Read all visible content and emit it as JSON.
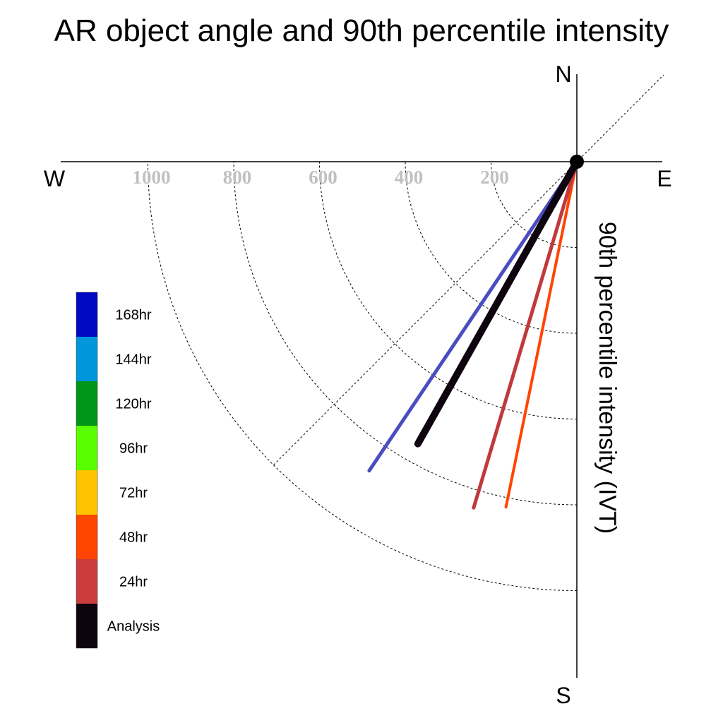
{
  "title": "AR object angle and 90th percentile intensity",
  "compass": {
    "n": "N",
    "e": "E",
    "s": "S",
    "w": "W"
  },
  "ylabel": "90th percentile intensity (IVT)",
  "chart_data": {
    "type": "polar-vector",
    "title": "AR object angle and 90th percentile intensity",
    "ylabel": "90th percentile intensity (IVT)",
    "radial_range": [
      0,
      1200
    ],
    "ring_ticks": [
      200,
      400,
      600,
      800,
      1000
    ],
    "ring_tick_labels": [
      "200",
      "400",
      "600",
      "800",
      "1000"
    ],
    "angle_range_deg": [
      0,
      90
    ],
    "angle_reference": "degrees clockwise from south toward west",
    "diagonal_deg": 45,
    "grid": true,
    "legend_position": "left",
    "legend": [
      {
        "label": "168hr",
        "color": "#0008c2"
      },
      {
        "label": "144hr",
        "color": "#0096dc"
      },
      {
        "label": "120hr",
        "color": "#009617"
      },
      {
        "label": "96hr",
        "color": "#59ff00"
      },
      {
        "label": "72hr",
        "color": "#ffc400"
      },
      {
        "label": "48hr",
        "color": "#ff4500"
      },
      {
        "label": "24hr",
        "color": "#cb3c3d"
      },
      {
        "label": "Analysis",
        "color": "#0d040e"
      }
    ],
    "series": [
      {
        "name": "168hr",
        "angle_deg": 33.9,
        "intensity": 868,
        "color": "#4a4cc0",
        "width": 5
      },
      {
        "name": "48hr",
        "angle_deg": 11.6,
        "intensity": 822,
        "color": "#ff4500",
        "width": 4
      },
      {
        "name": "24hr",
        "angle_deg": 16.6,
        "intensity": 842,
        "color": "#c0393c",
        "width": 5
      },
      {
        "name": "Analysis",
        "angle_deg": 29.4,
        "intensity": 755,
        "color": "#0d040e",
        "width": 10
      }
    ]
  }
}
